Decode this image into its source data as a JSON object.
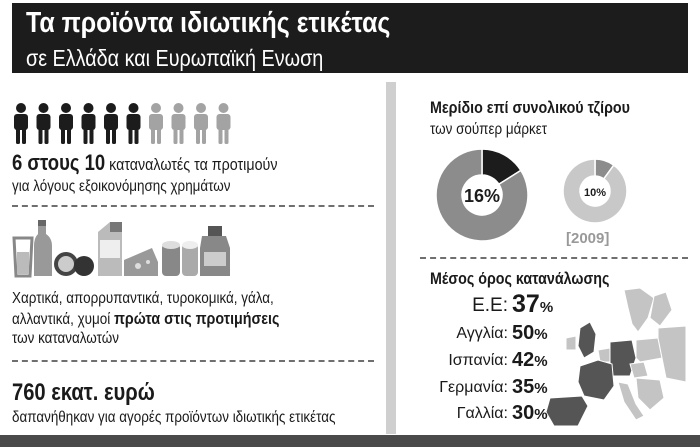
{
  "header": {
    "title": "Τα προϊόντα ιδιωτικής ετικέτας",
    "subtitle": "σε Ελλάδα και Ευρωπαϊκή Ενωση"
  },
  "people": {
    "count_text": "6 στους 10",
    "line1_rest": "καταναλωτές τα προτιμούν",
    "line2": "για λόγους εξοικονόμησης χρημάτων"
  },
  "products": {
    "line1": "Χαρτικά, απορρυπαντικά, τυροκομικά, γάλα,",
    "line2_start": "αλλαντικά, χυμοί",
    "line2_bold": "πρώτα στις προτιμήσεις",
    "line3": "των καταναλωτών"
  },
  "spending": {
    "amount": "760 εκατ. ευρώ",
    "description": "δαπανήθηκαν για αγορές προϊόντων ιδιωτικής ετικέτας"
  },
  "share_section": {
    "title": "Μερίδιο επί συνολικού τζίρου",
    "subtitle": "των σούπερ μάρκετ",
    "pie_large_label": "16%",
    "pie_small_label": "10%",
    "year_label": "[2009]"
  },
  "consumption_section": {
    "title": "Μέσος όρος κατανάλωσης",
    "rows": [
      {
        "country": "Ε.Ε:",
        "value": "37",
        "unit": "%"
      },
      {
        "country": "Αγγλία:",
        "value": "50",
        "unit": "%"
      },
      {
        "country": "Ισπανία:",
        "value": "42",
        "unit": "%"
      },
      {
        "country": "Γερμανία:",
        "value": "35",
        "unit": "%"
      },
      {
        "country": "Γαλλία:",
        "value": "30",
        "unit": "%"
      }
    ]
  },
  "colors": {
    "dark": "#1c1c1c",
    "mid_gray": "#8c8c8c",
    "light_gray": "#c8c8c8",
    "map_gray": "#c4c4c4",
    "map_dark": "#555555"
  },
  "chart_data": [
    {
      "type": "bar",
      "subtype": "pictogram",
      "highlighted": 6,
      "total": 10
    },
    {
      "type": "pie",
      "title": "Μερίδιο επί συνολικού τζίρου",
      "values": [
        16,
        84
      ],
      "labels": [
        "16%",
        ""
      ]
    },
    {
      "type": "pie",
      "values": [
        10,
        90
      ],
      "labels": [
        "10%",
        ""
      ],
      "year": "[2009]"
    },
    {
      "type": "table",
      "title": "Μέσος όρος κατανάλωσης",
      "categories": [
        "Ε.Ε",
        "Αγγλία",
        "Ισπανία",
        "Γερμανία",
        "Γαλλία"
      ],
      "values": [
        37,
        50,
        42,
        35,
        30
      ]
    }
  ]
}
